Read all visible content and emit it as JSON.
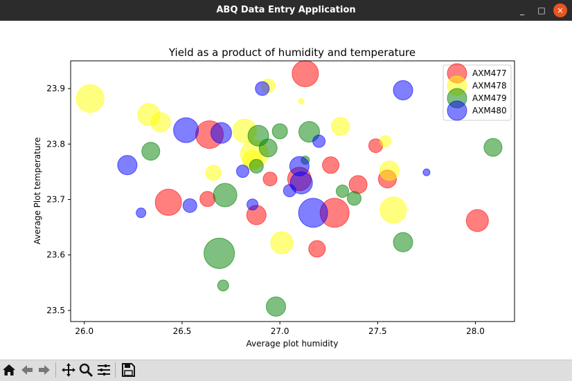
{
  "window": {
    "title": "ABQ Data Entry Application",
    "minimize": "_",
    "maximize": "□",
    "close": "×"
  },
  "toolbar": {
    "icons": [
      "home-icon",
      "back-arrow-icon",
      "forward-arrow-icon",
      "pan-icon",
      "zoom-icon",
      "configure-subplots-icon",
      "save-icon"
    ]
  },
  "chart_data": {
    "type": "scatter",
    "title": "Yield as a product of humidity and temperature",
    "xlabel": "Average plot humidity",
    "ylabel": "Average Plot temperature",
    "xlim": [
      25.93,
      28.2
    ],
    "ylim": [
      23.48,
      23.95
    ],
    "xticks": [
      "26.0",
      "26.5",
      "27.0",
      "27.5",
      "28.0"
    ],
    "xtick_values": [
      26.0,
      26.5,
      27.0,
      27.5,
      28.0
    ],
    "yticks": [
      "23.5",
      "23.6",
      "23.7",
      "23.8",
      "23.9"
    ],
    "ytick_values": [
      23.5,
      23.6,
      23.7,
      23.8,
      23.9
    ],
    "legend_position": "top-right",
    "marker_alpha": 0.5,
    "size_note": "marker area encodes yield",
    "series": [
      {
        "name": "AXM477",
        "color": "#ff0000",
        "points": [
          [
            27.13,
            23.927,
            19
          ],
          [
            26.64,
            23.817,
            20
          ],
          [
            26.43,
            23.695,
            19
          ],
          [
            27.28,
            23.676,
            21
          ],
          [
            26.88,
            23.672,
            14
          ],
          [
            27.1,
            23.737,
            17
          ],
          [
            27.4,
            23.727,
            13
          ],
          [
            27.26,
            23.762,
            12
          ],
          [
            26.95,
            23.737,
            10
          ],
          [
            26.63,
            23.701,
            11
          ],
          [
            27.55,
            23.737,
            13
          ],
          [
            28.01,
            23.662,
            16
          ],
          [
            27.19,
            23.611,
            12
          ],
          [
            27.49,
            23.797,
            10
          ]
        ]
      },
      {
        "name": "AXM478",
        "color": "#ffff00",
        "points": [
          [
            26.03,
            23.882,
            20
          ],
          [
            26.33,
            23.853,
            16
          ],
          [
            26.39,
            23.839,
            14
          ],
          [
            26.82,
            23.824,
            17
          ],
          [
            26.87,
            23.782,
            20
          ],
          [
            26.86,
            23.771,
            14
          ],
          [
            26.94,
            23.905,
            10
          ],
          [
            27.11,
            23.877,
            4
          ],
          [
            27.31,
            23.832,
            13
          ],
          [
            27.54,
            23.805,
            8
          ],
          [
            27.56,
            23.752,
            14
          ],
          [
            27.58,
            23.681,
            19
          ],
          [
            27.01,
            23.622,
            16
          ],
          [
            26.66,
            23.748,
            11
          ]
        ]
      },
      {
        "name": "AXM479",
        "color": "#008000",
        "points": [
          [
            26.34,
            23.787,
            13
          ],
          [
            26.89,
            23.815,
            15
          ],
          [
            26.94,
            23.793,
            13
          ],
          [
            27.0,
            23.823,
            11
          ],
          [
            27.15,
            23.822,
            15
          ],
          [
            26.88,
            23.76,
            10
          ],
          [
            27.13,
            23.771,
            6
          ],
          [
            26.72,
            23.708,
            17
          ],
          [
            27.32,
            23.715,
            9
          ],
          [
            27.38,
            23.702,
            10
          ],
          [
            26.69,
            23.603,
            22
          ],
          [
            26.71,
            23.545,
            8
          ],
          [
            26.98,
            23.507,
            14
          ],
          [
            27.63,
            23.623,
            14
          ],
          [
            28.09,
            23.794,
            13
          ]
        ]
      },
      {
        "name": "AXM480",
        "color": "#0000ff",
        "points": [
          [
            26.52,
            23.825,
            18
          ],
          [
            26.7,
            23.82,
            15
          ],
          [
            26.22,
            23.762,
            14
          ],
          [
            26.91,
            23.9,
            10
          ],
          [
            27.63,
            23.897,
            14
          ],
          [
            27.2,
            23.805,
            9
          ],
          [
            27.1,
            23.76,
            14
          ],
          [
            27.11,
            23.73,
            16
          ],
          [
            27.05,
            23.716,
            9
          ],
          [
            26.29,
            23.676,
            7
          ],
          [
            26.54,
            23.689,
            10
          ],
          [
            26.86,
            23.691,
            8
          ],
          [
            26.81,
            23.751,
            9
          ],
          [
            27.17,
            23.676,
            21
          ],
          [
            27.75,
            23.749,
            5
          ]
        ]
      }
    ]
  }
}
